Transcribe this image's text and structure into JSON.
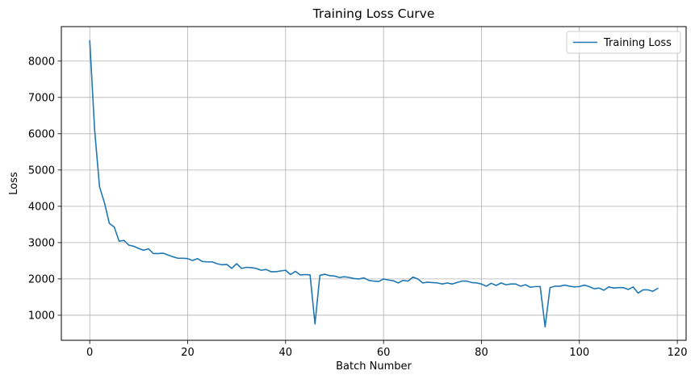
{
  "chart_data": {
    "type": "line",
    "title": "Training Loss Curve",
    "xlabel": "Batch Number",
    "ylabel": "Loss",
    "xlim": [
      -5.8,
      121.8
    ],
    "ylim": [
      310,
      8950
    ],
    "xticks": [
      0,
      20,
      40,
      60,
      80,
      100,
      120
    ],
    "yticks": [
      1000,
      2000,
      3000,
      4000,
      5000,
      6000,
      7000,
      8000
    ],
    "grid": true,
    "legend_position": "top-right",
    "line_color": "#1f77b4",
    "series": [
      {
        "name": "Training Loss",
        "x": [
          0,
          1,
          2,
          3,
          4,
          5,
          6,
          7,
          8,
          9,
          10,
          11,
          12,
          13,
          14,
          15,
          16,
          17,
          18,
          19,
          20,
          21,
          22,
          23,
          24,
          25,
          26,
          27,
          28,
          29,
          30,
          31,
          32,
          33,
          34,
          35,
          36,
          37,
          38,
          39,
          40,
          41,
          42,
          43,
          44,
          45,
          46,
          47,
          48,
          49,
          50,
          51,
          52,
          53,
          54,
          55,
          56,
          57,
          58,
          59,
          60,
          61,
          62,
          63,
          64,
          65,
          66,
          67,
          68,
          69,
          70,
          71,
          72,
          73,
          74,
          75,
          76,
          77,
          78,
          79,
          80,
          81,
          82,
          83,
          84,
          85,
          86,
          87,
          88,
          89,
          90,
          91,
          92,
          93,
          94,
          95,
          96,
          97,
          98,
          99,
          100,
          101,
          102,
          103,
          104,
          105,
          106,
          107,
          108,
          109,
          110,
          111,
          112,
          113,
          114,
          115,
          116
        ],
        "values": [
          8560,
          6100,
          4540,
          4100,
          3530,
          3430,
          3040,
          3060,
          2930,
          2900,
          2840,
          2790,
          2830,
          2700,
          2700,
          2710,
          2660,
          2610,
          2570,
          2570,
          2560,
          2510,
          2560,
          2480,
          2470,
          2470,
          2420,
          2390,
          2400,
          2290,
          2420,
          2290,
          2320,
          2310,
          2290,
          2240,
          2260,
          2200,
          2200,
          2220,
          2240,
          2120,
          2210,
          2110,
          2120,
          2110,
          760,
          2100,
          2130,
          2090,
          2080,
          2040,
          2060,
          2040,
          2010,
          2000,
          2030,
          1960,
          1940,
          1930,
          2000,
          1970,
          1950,
          1890,
          1960,
          1940,
          2050,
          2000,
          1890,
          1910,
          1900,
          1890,
          1860,
          1890,
          1860,
          1900,
          1940,
          1940,
          1900,
          1890,
          1860,
          1800,
          1880,
          1820,
          1890,
          1840,
          1860,
          1860,
          1800,
          1840,
          1770,
          1790,
          1790,
          680,
          1760,
          1800,
          1800,
          1830,
          1800,
          1780,
          1790,
          1830,
          1790,
          1730,
          1750,
          1690,
          1780,
          1750,
          1760,
          1760,
          1710,
          1780,
          1610,
          1700,
          1700,
          1660,
          1740
        ]
      }
    ]
  }
}
